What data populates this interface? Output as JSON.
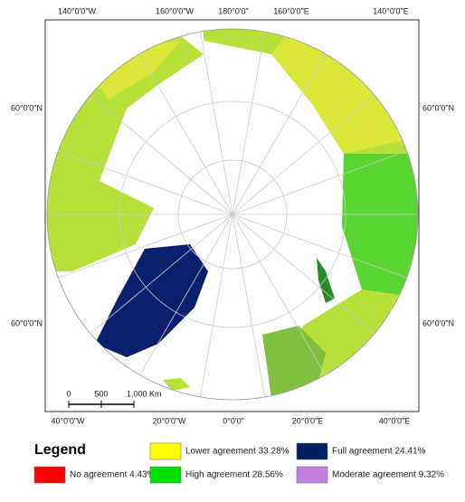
{
  "graticule_labels": {
    "top": [
      "140°0'0\"W",
      "160°0'0\"W",
      "180°0'0\"",
      "160°0'0\"E",
      "140°0'0\"E"
    ],
    "left": [
      "60°0'0\"N",
      "60°0'0\"N"
    ],
    "right": [
      "60°0'0\"N",
      "60°0'0\"N"
    ],
    "bottom": [
      "40°0'0\"W",
      "20°0'0\"W",
      "0°0'0\"",
      "20°0'0\"E",
      "40°0'0\"E"
    ]
  },
  "scale_bar": {
    "labels": [
      "0",
      "500",
      "1,000 Km"
    ]
  },
  "legend": {
    "title": "Legend",
    "items": [
      {
        "label": "Lower agreement 33.28%",
        "color": "#ffff00"
      },
      {
        "label": "Full agreement 24.41%",
        "color": "#002060"
      },
      {
        "label": "No agreement 4.43%",
        "color": "#ff0000"
      },
      {
        "label": "High agreement 28.56%",
        "color": "#00e000"
      },
      {
        "label": "Moderate agreement 9.32%",
        "color": "#c080e0"
      }
    ]
  }
}
